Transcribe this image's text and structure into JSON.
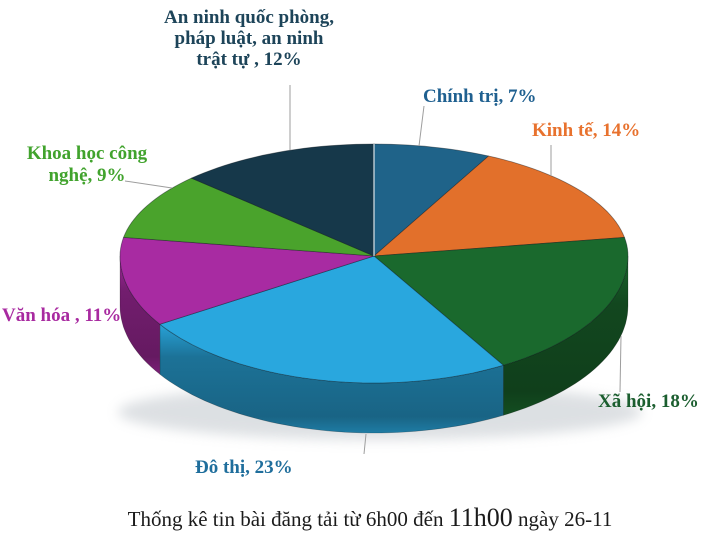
{
  "page": {
    "background": "#ffffff"
  },
  "chart_data": {
    "type": "pie",
    "style": "3d",
    "title": "Thống kê tin bài đăng tải từ 6h00 đến 11h00 ngày 26-11",
    "start_angle_deg": -90,
    "direction": "clockwise",
    "unit": "%",
    "legend": "none",
    "slices": [
      {
        "name": "Chính trị",
        "value": 7,
        "color": "#1F6389"
      },
      {
        "name": "Kinh tế",
        "value": 14,
        "color": "#E2702B"
      },
      {
        "name": "Xã hội",
        "value": 18,
        "color": "#1A692D"
      },
      {
        "name": "Đô thị",
        "value": 23,
        "color": "#29A7DE"
      },
      {
        "name": "Văn hóa",
        "value": 11,
        "color": "#A82BA2"
      },
      {
        "name": "Khoa học công nghệ",
        "value": 9,
        "color": "#4AA32C"
      },
      {
        "name": "An ninh quốc phòng, pháp luật, an ninh trật tự",
        "value": 12,
        "color": "#16384A"
      }
    ]
  },
  "labels": {
    "an_ninh": {
      "lines": [
        "An ninh quốc phòng,",
        "pháp luật, an ninh",
        "trật tự , 12%"
      ],
      "color": "#1D4459"
    },
    "chinh_tri": {
      "lines": [
        "Chính trị, 7%"
      ],
      "color": "#1F6090"
    },
    "kinh_te": {
      "lines": [
        "Kinh tế, 14%"
      ],
      "color": "#E8722E"
    },
    "khoa_hoc": {
      "lines": [
        "Khoa học công",
        "nghệ, 9%"
      ],
      "color": "#41A32D"
    },
    "van_hoa": {
      "lines": [
        "Văn hóa , 11%"
      ],
      "color": "#A82AA0"
    },
    "do_thi": {
      "lines": [
        "Đô thị, 23%"
      ],
      "color": "#1F6E9C"
    },
    "xa_hoi": {
      "lines": [
        "Xã hội, 18%"
      ],
      "color": "#1B5E2F"
    }
  },
  "caption": {
    "prefix": "Thống kê tin bài đăng tải từ 6h00 đến ",
    "highlight": "11h00",
    "suffix": " ngày 26-11"
  }
}
